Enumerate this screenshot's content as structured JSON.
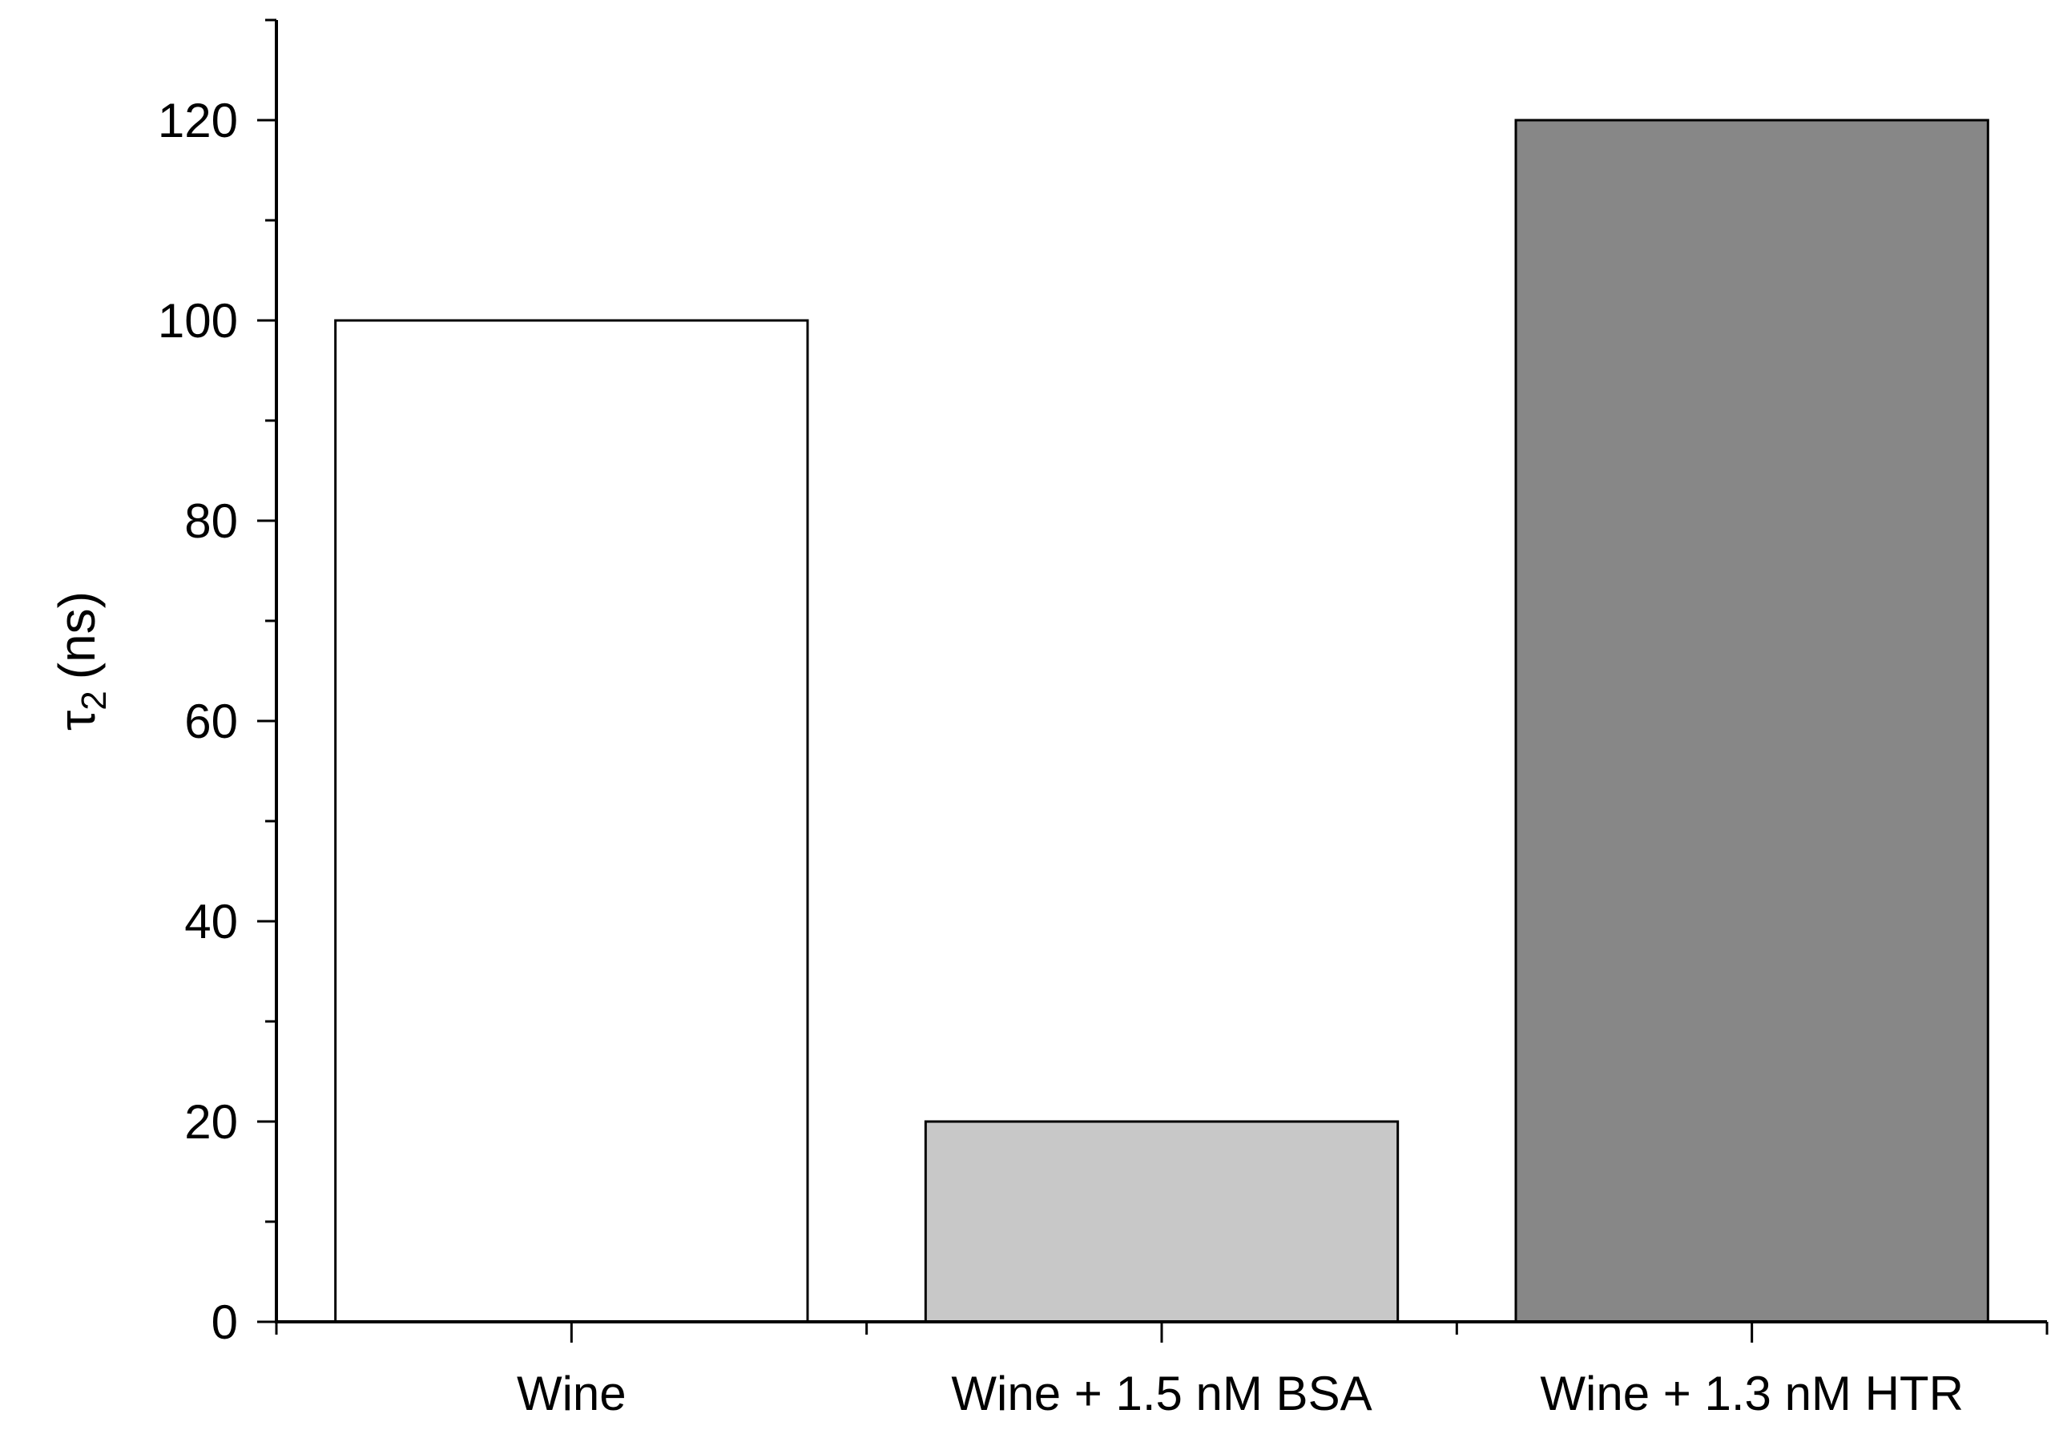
{
  "chart_data": {
    "type": "bar",
    "title": "",
    "xlabel": "",
    "ylabel": {
      "symbol": "τ",
      "subscript": "2",
      "unit": "(ns)"
    },
    "categories": [
      "Wine",
      "Wine + 1.5 nM BSA",
      "Wine + 1.3 nM HTR"
    ],
    "values": [
      100,
      20,
      120
    ],
    "bar_colors": [
      "#ffffff",
      "#c8c8c8",
      "#878787"
    ],
    "ylim": [
      0,
      130
    ],
    "yticks": [
      0,
      20,
      40,
      60,
      80,
      100,
      120
    ],
    "ytick_labels": [
      "0",
      "20",
      "40",
      "60",
      "80",
      "100",
      "120"
    ],
    "y_minor_step": 10,
    "grid": false,
    "legend": "none"
  }
}
